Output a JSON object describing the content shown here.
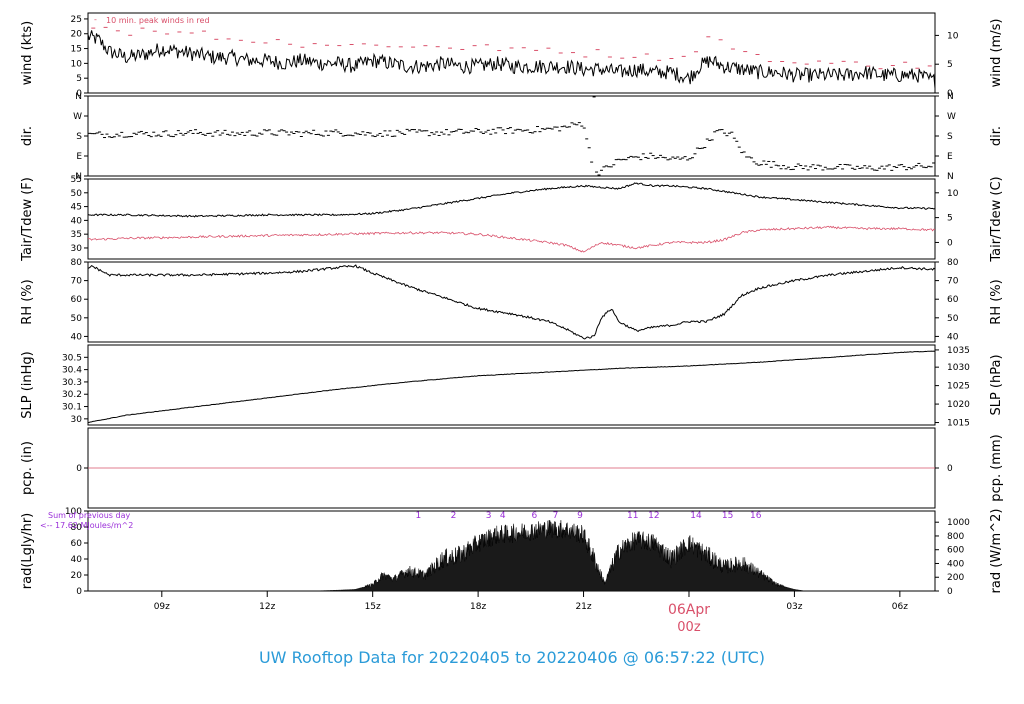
{
  "title": "UW Rooftop Data for 20220405  to  20220406 @ 06:57:22  (UTC)",
  "time_axis": {
    "ticks": [
      {
        "label": "09z",
        "hour": 9
      },
      {
        "label": "12z",
        "hour": 12
      },
      {
        "label": "15z",
        "hour": 15
      },
      {
        "label": "18z",
        "hour": 18
      },
      {
        "label": "21z",
        "hour": 21
      },
      {
        "label": "",
        "hour": 24
      },
      {
        "label": "03z",
        "hour": 27
      },
      {
        "label": "06z",
        "hour": 30
      }
    ],
    "date_label": "06Apr",
    "date_sublabel": "00z",
    "date_color": "#d9506a"
  },
  "colors": {
    "line": "#000000",
    "accent": "#d9506a",
    "rad_label": "#9b30d9",
    "title": "#2b9bd8"
  },
  "chart_data": [
    {
      "id": "wind",
      "type": "line",
      "ylabel": "wind (kts)",
      "ylabel_right": "wind (m/s)",
      "ylim": [
        0,
        27
      ],
      "yticks": [
        0,
        5,
        10,
        15,
        20,
        25
      ],
      "yticks_right": [
        {
          "label": "0",
          "value": 0
        },
        {
          "label": "5",
          "value": 9.72
        },
        {
          "label": "10",
          "value": 19.44
        }
      ],
      "annotation": "10 min. peak winds in red",
      "series": [
        {
          "role": "wind",
          "x": [
            6.9,
            7.2,
            7.5,
            8.0,
            8.5,
            9.0,
            9.5,
            10.0,
            10.5,
            11.0,
            11.5,
            12.0,
            12.5,
            13.0,
            13.5,
            14.0,
            14.5,
            15.0,
            15.5,
            16.0,
            16.5,
            17.0,
            17.5,
            18.0,
            18.5,
            19.0,
            19.5,
            20.0,
            20.5,
            21.0,
            21.5,
            22.0,
            22.5,
            23.0,
            23.5,
            24.0,
            24.3,
            24.6,
            25.0,
            25.5,
            26.0,
            26.5,
            27.0,
            27.5,
            28.0,
            28.5,
            29.0,
            29.5,
            30.0,
            30.5,
            31.0
          ],
          "values": [
            19,
            18,
            14,
            12,
            13,
            15,
            14,
            13,
            12,
            12,
            11,
            11,
            10,
            11,
            10,
            10,
            9,
            11,
            10,
            9,
            9,
            10,
            9,
            9,
            10,
            9,
            9,
            9,
            9,
            8,
            8,
            7,
            8,
            7,
            7,
            5,
            9,
            11,
            9,
            8,
            7,
            7,
            6,
            6,
            6,
            6,
            7,
            6,
            6,
            6,
            4
          ],
          "jitter": 2.5
        },
        {
          "role": "peak",
          "x": [
            7.0,
            7.5,
            8.0,
            8.5,
            9.0,
            9.5,
            10.0,
            10.5,
            11.0,
            11.5,
            12.0,
            12.5,
            13.0,
            13.5,
            14.0,
            14.5,
            15.0,
            15.5,
            16.0,
            16.5,
            17.0,
            17.5,
            18.0,
            18.5,
            19.0,
            19.5,
            20.0,
            20.5,
            21.0,
            21.5,
            22.0,
            22.5,
            23.0,
            23.5,
            24.0,
            24.5,
            25.0,
            25.5,
            26.0,
            26.5,
            27.0,
            27.5,
            28.0,
            28.5,
            29.0,
            29.5,
            30.0,
            30.5,
            31.0
          ],
          "values": [
            23,
            22,
            20,
            22,
            21,
            20,
            21,
            19,
            18,
            18,
            17,
            18,
            16,
            17,
            16,
            16,
            17,
            16,
            15,
            16,
            16,
            15,
            16,
            15,
            15,
            14,
            15,
            14,
            13,
            14,
            12,
            13,
            12,
            12,
            12,
            19,
            17,
            14,
            12,
            11,
            10,
            11,
            10,
            10,
            10,
            9,
            10,
            9,
            9
          ],
          "jitter": 2
        }
      ]
    },
    {
      "id": "dir",
      "type": "scatter",
      "ylabel": "dir.",
      "ylabel_right": "dir.",
      "ylim": [
        0,
        360
      ],
      "yticks_labeled": [
        {
          "label": "N",
          "value": 0
        },
        {
          "label": "E",
          "value": 90
        },
        {
          "label": "S",
          "value": 180
        },
        {
          "label": "W",
          "value": 270
        },
        {
          "label": "N",
          "value": 360
        }
      ],
      "series": [
        {
          "role": "direction",
          "x": [
            6.9,
            8.0,
            9.0,
            10.0,
            11.0,
            12.0,
            13.0,
            14.0,
            15.0,
            16.0,
            17.0,
            18.0,
            19.0,
            20.0,
            20.5,
            21.0,
            21.3,
            21.6,
            22.0,
            22.5,
            23.0,
            23.5,
            24.0,
            24.5,
            24.8,
            25.2,
            25.6,
            26.0,
            27.0,
            28.0,
            29.0,
            30.0,
            31.0
          ],
          "values": [
            185,
            190,
            190,
            195,
            190,
            195,
            192,
            195,
            190,
            195,
            195,
            200,
            205,
            210,
            220,
            240,
            10,
            30,
            70,
            85,
            90,
            75,
            80,
            150,
            200,
            190,
            90,
            60,
            40,
            40,
            35,
            40,
            45
          ],
          "jitter": 15
        }
      ]
    },
    {
      "id": "temp",
      "type": "line",
      "ylabel": "Tair/Tdew (F)",
      "ylabel_right": "Tair/Tdew (C)",
      "ylim": [
        26,
        55
      ],
      "yticks": [
        30,
        35,
        40,
        45,
        50,
        55
      ],
      "yticks_right": [
        {
          "label": "0",
          "value": 32
        },
        {
          "label": "5",
          "value": 41
        },
        {
          "label": "10",
          "value": 50
        }
      ],
      "series": [
        {
          "role": "tair",
          "x": [
            6.9,
            8.0,
            10.0,
            12.0,
            13.0,
            14.0,
            15.0,
            16.0,
            17.0,
            18.0,
            19.0,
            20.0,
            21.0,
            21.5,
            22.0,
            22.5,
            23.0,
            23.5,
            24.0,
            24.5,
            25.0,
            25.5,
            26.0,
            27.0,
            28.0,
            29.0,
            30.0,
            31.0
          ],
          "values": [
            42,
            42,
            41.5,
            42,
            42,
            42,
            42.5,
            44,
            46,
            48,
            50,
            51.5,
            52.5,
            52,
            51.5,
            53.5,
            52.5,
            52.5,
            52,
            51.5,
            50.5,
            49.5,
            48.5,
            47.5,
            46.5,
            45.5,
            44.5,
            44.3
          ],
          "jitter": 0.3
        },
        {
          "role": "tdew",
          "x": [
            6.9,
            8.0,
            10.0,
            12.0,
            14.0,
            16.0,
            17.0,
            18.0,
            19.0,
            20.0,
            20.5,
            21.0,
            21.5,
            22.0,
            22.5,
            23.0,
            23.5,
            24.0,
            24.5,
            25.0,
            25.5,
            26.0,
            27.0,
            28.0,
            29.0,
            30.0,
            31.0
          ],
          "values": [
            33,
            33.5,
            34,
            34.5,
            35,
            35.5,
            35.5,
            35,
            33.5,
            32,
            31,
            28.5,
            32,
            31,
            30,
            31,
            32,
            32,
            32,
            33,
            35.5,
            36.5,
            37,
            37.5,
            37,
            37,
            36.5
          ],
          "jitter": 0.4
        }
      ]
    },
    {
      "id": "rh",
      "type": "line",
      "ylabel": "RH (%)",
      "ylabel_right": "RH (%)",
      "ylim": [
        37,
        80
      ],
      "yticks": [
        40,
        50,
        60,
        70,
        80
      ],
      "yticks_right": [
        {
          "label": "40",
          "value": 40
        },
        {
          "label": "50",
          "value": 50
        },
        {
          "label": "60",
          "value": 60
        },
        {
          "label": "70",
          "value": 70
        },
        {
          "label": "80",
          "value": 80
        }
      ],
      "series": [
        {
          "role": "rh",
          "x": [
            6.9,
            7.0,
            7.5,
            8.0,
            10.0,
            12.0,
            13.0,
            14.0,
            14.5,
            15.0,
            16.0,
            17.0,
            18.0,
            19.0,
            20.0,
            20.5,
            21.0,
            21.3,
            21.5,
            21.8,
            22.0,
            22.5,
            23.0,
            23.5,
            24.0,
            24.5,
            25.0,
            25.5,
            26.0,
            27.0,
            28.0,
            29.0,
            30.0,
            31.0
          ],
          "values": [
            76,
            78,
            73,
            73,
            73,
            74,
            75,
            77,
            78,
            74,
            67,
            61,
            55,
            52,
            48,
            44,
            39,
            40,
            50,
            55,
            48,
            43,
            45,
            46,
            48,
            48,
            52,
            62,
            66,
            70,
            73,
            75,
            77,
            76
          ],
          "jitter": 0.6
        }
      ]
    },
    {
      "id": "slp",
      "type": "line",
      "ylabel": "SLP (inHg)",
      "ylabel_right": "SLP (hPa)",
      "ylim": [
        29.95,
        30.6
      ],
      "yticks": [
        30.0,
        30.1,
        30.2,
        30.3,
        30.4,
        30.5
      ],
      "yticks_right": [
        {
          "label": "1015",
          "value": 29.97
        },
        {
          "label": "1020",
          "value": 30.12
        },
        {
          "label": "1025",
          "value": 30.27
        },
        {
          "label": "1030",
          "value": 30.42
        },
        {
          "label": "1035",
          "value": 30.56
        }
      ],
      "series": [
        {
          "role": "slp",
          "x": [
            6.9,
            8.0,
            10.0,
            12.0,
            14.0,
            16.0,
            18.0,
            20.0,
            22.0,
            24.0,
            26.0,
            28.0,
            30.0,
            31.0
          ],
          "values": [
            29.97,
            30.03,
            30.1,
            30.17,
            30.24,
            30.3,
            30.35,
            30.38,
            30.41,
            30.43,
            30.46,
            30.5,
            30.54,
            30.55
          ],
          "jitter": 0.002
        }
      ]
    },
    {
      "id": "pcp",
      "type": "line",
      "ylabel": "pcp. (in)",
      "ylabel_right": "pcp. (mm)",
      "ylim": [
        -1,
        1
      ],
      "yticks": [
        0
      ],
      "yticks_right": [
        {
          "label": "0",
          "value": 0
        }
      ],
      "series": [
        {
          "role": "pcp",
          "x": [
            6.9,
            31.0
          ],
          "values": [
            0,
            0
          ],
          "jitter": 0
        }
      ]
    },
    {
      "id": "rad",
      "type": "area",
      "ylabel": "rad(Lgly/hr)",
      "ylabel_right": "rad (W/m^2)",
      "ylim": [
        0,
        100
      ],
      "yticks": [
        0,
        20,
        40,
        60,
        80,
        100
      ],
      "yticks_right": [
        {
          "label": "0",
          "value": 0
        },
        {
          "label": "200",
          "value": 17.2
        },
        {
          "label": "400",
          "value": 34.4
        },
        {
          "label": "600",
          "value": 51.6
        },
        {
          "label": "800",
          "value": 68.8
        },
        {
          "label": "1000",
          "value": 86.0
        }
      ],
      "annotation_line1": "Sum of previous day",
      "annotation_line2": "<-- 17.62 MJoules/m^2",
      "hour_marks": [
        {
          "label": "1",
          "hour": 16.3
        },
        {
          "label": "2",
          "hour": 17.3
        },
        {
          "label": "3",
          "hour": 18.3
        },
        {
          "label": "4",
          "hour": 18.7
        },
        {
          "label": "6",
          "hour": 19.6
        },
        {
          "label": "7",
          "hour": 20.2
        },
        {
          "label": "9",
          "hour": 20.9
        },
        {
          "label": "11",
          "hour": 22.4
        },
        {
          "label": "12",
          "hour": 23.0
        },
        {
          "label": "14",
          "hour": 24.2
        },
        {
          "label": "15",
          "hour": 25.1
        },
        {
          "label": "16",
          "hour": 25.9
        }
      ],
      "series": [
        {
          "role": "rad",
          "x": [
            13.3,
            14.0,
            14.5,
            15.0,
            15.3,
            15.6,
            16.0,
            16.5,
            17.0,
            17.5,
            18.0,
            18.5,
            19.0,
            19.5,
            20.0,
            20.5,
            21.0,
            21.3,
            21.6,
            22.0,
            22.5,
            23.0,
            23.5,
            24.0,
            24.5,
            25.0,
            25.5,
            26.0,
            26.5,
            27.0,
            27.3
          ],
          "values": [
            0,
            1,
            2,
            8,
            20,
            15,
            25,
            20,
            40,
            45,
            60,
            70,
            72,
            75,
            78,
            77,
            70,
            40,
            10,
            50,
            64,
            60,
            40,
            60,
            45,
            30,
            35,
            22,
            8,
            2,
            0
          ],
          "jitter": 12
        }
      ]
    }
  ]
}
